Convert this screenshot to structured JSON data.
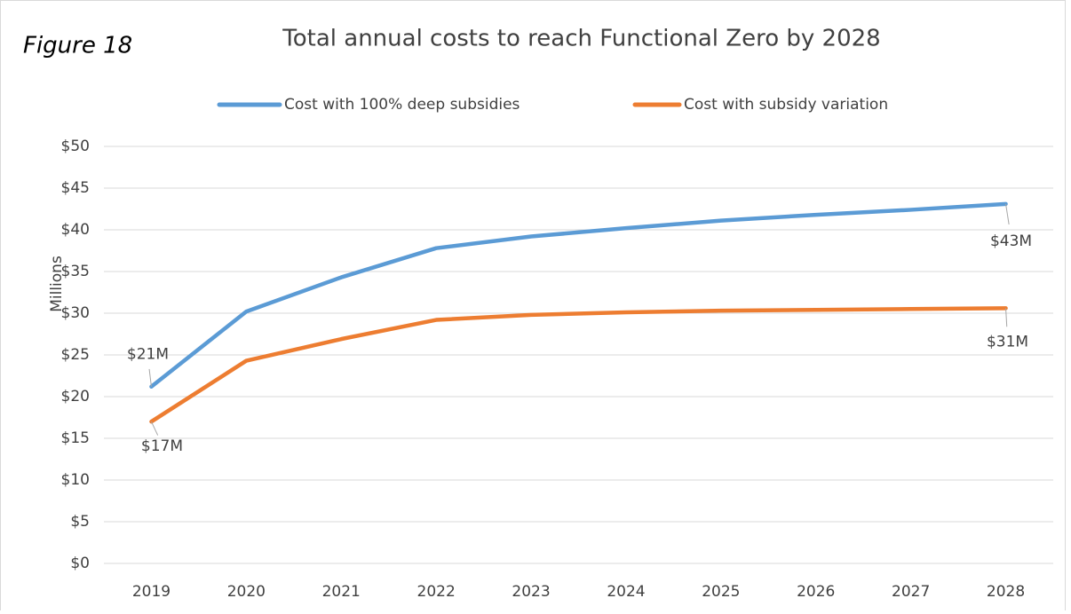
{
  "chart_data": {
    "type": "line",
    "title": "Total annual costs to reach Functional Zero by 2028",
    "annotation": "Figure 18",
    "y_label": "Millions",
    "categories": [
      "2019",
      "2020",
      "2021",
      "2022",
      "2023",
      "2024",
      "2025",
      "2026",
      "2027",
      "2028"
    ],
    "series": [
      {
        "name": "Cost with 100% deep subsidies",
        "color": "#5b9bd5",
        "values": [
          21.2,
          30.2,
          34.3,
          37.8,
          39.2,
          40.2,
          41.1,
          41.8,
          42.4,
          43.1
        ],
        "value_labels": [
          "$21M",
          null,
          null,
          null,
          null,
          null,
          null,
          null,
          null,
          "$43M"
        ]
      },
      {
        "name": "Cost with subsidy variation",
        "color": "#ed7d31",
        "values": [
          17.0,
          24.3,
          26.9,
          29.2,
          29.8,
          30.1,
          30.3,
          30.4,
          30.5,
          30.6
        ],
        "value_labels": [
          "$17M",
          null,
          null,
          null,
          null,
          null,
          null,
          null,
          null,
          "$31M"
        ]
      }
    ],
    "ylim": [
      0,
      50
    ],
    "yticks": [
      {
        "value": 0,
        "label": "$0"
      },
      {
        "value": 5,
        "label": "$5"
      },
      {
        "value": 10,
        "label": "$10"
      },
      {
        "value": 15,
        "label": "$15"
      },
      {
        "value": 20,
        "label": "$20"
      },
      {
        "value": 25,
        "label": "$25"
      },
      {
        "value": 30,
        "label": "$30"
      },
      {
        "value": 35,
        "label": "$35"
      },
      {
        "value": 40,
        "label": "$40"
      },
      {
        "value": 45,
        "label": "$45"
      },
      {
        "value": 50,
        "label": "$50"
      }
    ],
    "grid": true,
    "legend": "top"
  }
}
